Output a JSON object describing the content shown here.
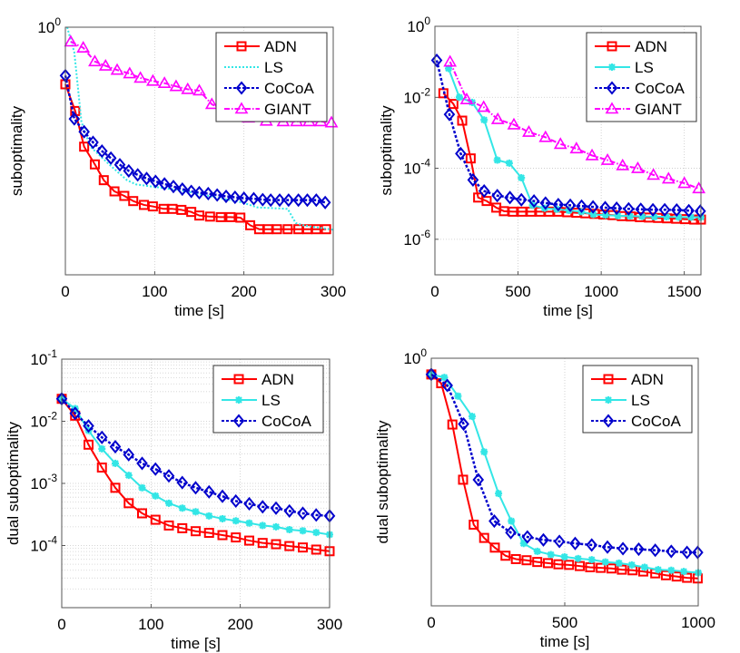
{
  "chart_data": [
    {
      "type": "line",
      "xlabel": "time [s]",
      "ylabel": "suboptimality",
      "yscale": "log",
      "xlim": [
        0,
        300
      ],
      "ylim": [
        0.2,
        1
      ],
      "xticks": [
        0,
        100,
        200,
        300
      ],
      "xtick_labels": [
        "0",
        "100",
        "200",
        "300"
      ],
      "yticks": [
        1
      ],
      "ytick_labels": [
        "10^0"
      ],
      "grid": "major dotted",
      "legend": "top-right",
      "series": [
        {
          "name": "ADN",
          "color": "#ff0000",
          "line": "solid",
          "marker": "square",
          "x": [
            0,
            11,
            21,
            33,
            43,
            55,
            66,
            76,
            88,
            98,
            110,
            120,
            130,
            141,
            150,
            162,
            174,
            185,
            196,
            207,
            217,
            227,
            237,
            249,
            261,
            271,
            281,
            292
          ],
          "y": [
            0.69,
            0.58,
            0.46,
            0.41,
            0.37,
            0.344,
            0.334,
            0.323,
            0.315,
            0.312,
            0.307,
            0.307,
            0.305,
            0.301,
            0.294,
            0.292,
            0.291,
            0.291,
            0.29,
            0.276,
            0.269,
            0.269,
            0.269,
            0.269,
            0.269,
            0.269,
            0.269,
            0.269
          ]
        },
        {
          "name": "LS",
          "color": "#33e6e6",
          "line": "dotted",
          "marker": "none",
          "x": [
            2,
            10,
            18,
            28,
            49,
            69,
            79,
            130,
            198,
            215,
            249,
            258,
            266,
            300
          ],
          "y": [
            1,
            0.85,
            0.54,
            0.46,
            0.41,
            0.37,
            0.36,
            0.346,
            0.32,
            0.31,
            0.307,
            0.28,
            0.276,
            0.268
          ]
        },
        {
          "name": "CoCoA",
          "color": "#0000cc",
          "line": "dashed",
          "marker": "diamond",
          "x": [
            0,
            10,
            21,
            31,
            41,
            51,
            61,
            71,
            81,
            91,
            101,
            111,
            121,
            131,
            141,
            150,
            160,
            170,
            180,
            190,
            200,
            211,
            221,
            230,
            240,
            250,
            261,
            271,
            281,
            291
          ],
          "y": [
            0.73,
            0.551,
            0.507,
            0.473,
            0.447,
            0.427,
            0.409,
            0.393,
            0.383,
            0.374,
            0.367,
            0.361,
            0.355,
            0.349,
            0.344,
            0.341,
            0.339,
            0.336,
            0.333,
            0.331,
            0.329,
            0.328,
            0.326,
            0.325,
            0.325,
            0.325,
            0.325,
            0.325,
            0.325,
            0.32
          ]
        },
        {
          "name": "GIANT",
          "color": "#ff00ff",
          "line": "dashdot",
          "marker": "triangle",
          "x": [
            6,
            20,
            33,
            45,
            58,
            72,
            84,
            98,
            111,
            124,
            137,
            150,
            164,
            178,
            191,
            205,
            225,
            244,
            259,
            273,
            286,
            298
          ],
          "y": [
            0.91,
            0.875,
            0.8,
            0.778,
            0.757,
            0.74,
            0.719,
            0.705,
            0.695,
            0.681,
            0.668,
            0.662,
            0.606,
            0.582,
            0.565,
            0.555,
            0.544,
            0.542,
            0.542,
            0.542,
            0.542,
            0.538
          ]
        }
      ]
    },
    {
      "type": "line",
      "xlabel": "time [s]",
      "ylabel": "suboptimality",
      "yscale": "log",
      "xlim": [
        0,
        1600
      ],
      "ylim": [
        1e-07,
        1
      ],
      "xticks": [
        0,
        500,
        1000,
        1500
      ],
      "xtick_labels": [
        "0",
        "500",
        "1000",
        "1500"
      ],
      "yticks": [
        1,
        0.01,
        0.0001,
        1e-06
      ],
      "ytick_labels": [
        "10^0",
        "10^-2",
        "10^-4",
        "10^-6"
      ],
      "grid": "major dotted",
      "legend": "top-right",
      "series": [
        {
          "name": "ADN",
          "color": "#ff0000",
          "line": "solid",
          "marker": "square",
          "x": [
            51,
            111,
            164,
            215,
            260,
            311,
            369,
            415,
            469,
            524,
            578,
            633,
            687,
            742,
            796,
            851,
            905,
            960,
            1014,
            1069,
            1124,
            1178,
            1233,
            1287,
            1342,
            1396,
            1451,
            1505,
            1560,
            1600
          ],
          "y": [
            0.013,
            0.0065,
            0.0022,
            0.00019,
            1.5e-05,
            1.2e-05,
            7.8e-06,
            6.2e-06,
            6e-06,
            6e-06,
            6e-06,
            6e-06,
            6e-06,
            6e-06,
            5.8e-06,
            5.6e-06,
            5.4e-06,
            5.2e-06,
            5e-06,
            4.8e-06,
            4.5e-06,
            4.4e-06,
            4.2e-06,
            4.1e-06,
            4e-06,
            3.9e-06,
            3.8e-06,
            3.7e-06,
            3.6e-06,
            3.6e-06
          ]
        },
        {
          "name": "LS",
          "color": "#33e6e6",
          "line": "solid",
          "marker": "star",
          "x": [
            82,
            147,
            224,
            296,
            375,
            447,
            520,
            587,
            660,
            733,
            806,
            880,
            953,
            1026,
            1100,
            1173,
            1246,
            1320,
            1393,
            1466,
            1540,
            1600
          ],
          "y": [
            0.065,
            0.01,
            0.0072,
            0.0023,
            0.00017,
            0.00014,
            5.4e-05,
            9.1e-06,
            7.5e-06,
            7e-06,
            6.5e-06,
            6e-06,
            5e-06,
            4.8e-06,
            4.6e-06,
            4.5e-06,
            4.4e-06,
            4.3e-06,
            4.3e-06,
            4.2e-06,
            4.2e-06,
            4.2e-06
          ]
        },
        {
          "name": "CoCoA",
          "color": "#0000cc",
          "line": "dashed",
          "marker": "diamond",
          "x": [
            11,
            87,
            155,
            229,
            296,
            375,
            451,
            520,
            596,
            665,
            742,
            814,
            882,
            951,
            1024,
            1093,
            1165,
            1238,
            1311,
            1382,
            1454,
            1527,
            1596
          ],
          "y": [
            0.11,
            0.0033,
            0.00026,
            4.7e-05,
            2.3e-05,
            1.7e-05,
            1.5e-05,
            1.3e-05,
            1.2e-05,
            1.05e-05,
            9.5e-06,
            9.1e-06,
            8.6e-06,
            8.2e-06,
            7.8e-06,
            7.5e-06,
            7.2e-06,
            7e-06,
            6.8e-06,
            6.8e-06,
            6.7e-06,
            6.4e-06,
            6.2e-06
          ]
        },
        {
          "name": "GIANT",
          "color": "#ff00ff",
          "line": "dashdot",
          "marker": "triangle",
          "x": [
            91,
            191,
            293,
            378,
            475,
            565,
            665,
            755,
            851,
            945,
            1038,
            1129,
            1220,
            1314,
            1405,
            1500,
            1587
          ],
          "y": [
            0.1,
            0.0087,
            0.0053,
            0.0024,
            0.0017,
            0.00105,
            0.00075,
            0.00048,
            0.00036,
            0.00023,
            0.00017,
            0.00012,
            0.0001,
            6.5e-05,
            5.1e-05,
            3.8e-05,
            2.7e-05
          ]
        }
      ]
    },
    {
      "type": "line",
      "xlabel": "time [s]",
      "ylabel": "dual suboptimality",
      "yscale": "log",
      "xlim": [
        0,
        300
      ],
      "ylim": [
        1e-05,
        0.1
      ],
      "xticks": [
        0,
        100,
        200,
        300
      ],
      "xtick_labels": [
        "0",
        "100",
        "200",
        "300"
      ],
      "yticks": [
        0.1,
        0.01,
        0.001,
        0.0001
      ],
      "ytick_labels": [
        "10^-1",
        "10^-2",
        "10^-3",
        "10^-4"
      ],
      "grid": "major and minor dotted",
      "legend": "top-right",
      "series": [
        {
          "name": "ADN",
          "color": "#ff0000",
          "line": "solid",
          "marker": "square",
          "x": [
            0,
            15,
            30,
            45,
            60,
            75,
            90,
            105,
            120,
            135,
            150,
            165,
            180,
            195,
            210,
            225,
            240,
            255,
            270,
            285,
            300
          ],
          "y": [
            0.023,
            0.0123,
            0.0042,
            0.0018,
            0.00085,
            0.00048,
            0.00033,
            0.00026,
            0.00021,
            0.00019,
            0.00017,
            0.00016,
            0.000147,
            0.000135,
            0.00012,
            0.00011,
            0.000105,
            9.8e-05,
            9.3e-05,
            8.6e-05,
            8.1e-05
          ]
        },
        {
          "name": "LS",
          "color": "#33e6e6",
          "line": "solid",
          "marker": "star",
          "x": [
            0,
            15,
            30,
            45,
            60,
            75,
            90,
            105,
            120,
            135,
            150,
            165,
            180,
            195,
            210,
            225,
            240,
            255,
            270,
            285,
            300
          ],
          "y": [
            0.023,
            0.016,
            0.0071,
            0.0036,
            0.0021,
            0.00135,
            0.00085,
            0.00063,
            0.00048,
            0.0004,
            0.00035,
            0.0003,
            0.00027,
            0.00025,
            0.00023,
            0.00021,
            0.0002,
            0.00018,
            0.000173,
            0.000162,
            0.00015
          ]
        },
        {
          "name": "CoCoA",
          "color": "#0000cc",
          "line": "dashed",
          "marker": "diamond",
          "x": [
            0,
            15,
            30,
            45,
            60,
            75,
            90,
            105,
            120,
            135,
            150,
            165,
            180,
            195,
            210,
            225,
            240,
            255,
            270,
            285,
            300
          ],
          "y": [
            0.023,
            0.0134,
            0.0084,
            0.0055,
            0.0039,
            0.0029,
            0.0021,
            0.0017,
            0.00132,
            0.00103,
            0.00085,
            0.00073,
            0.00062,
            0.00052,
            0.00047,
            0.00042,
            0.0004,
            0.00036,
            0.00033,
            0.00031,
            0.0003
          ]
        }
      ]
    },
    {
      "type": "line",
      "xlabel": "time [s]",
      "ylabel": "dual suboptimality",
      "yscale": "log",
      "xlim": [
        0,
        1000
      ],
      "ylim": [
        0.2,
        1
      ],
      "xticks": [
        0,
        500,
        1000
      ],
      "xtick_labels": [
        "0",
        "500",
        "1000"
      ],
      "yticks": [
        1
      ],
      "ytick_labels": [
        "10^0"
      ],
      "grid": "major dotted",
      "legend": "top-right",
      "series": [
        {
          "name": "ADN",
          "color": "#ff0000",
          "line": "solid",
          "marker": "square",
          "x": [
            0,
            37,
            79,
            119,
            159,
            198,
            238,
            278,
            317,
            357,
            397,
            437,
            476,
            516,
            556,
            595,
            635,
            675,
            714,
            754,
            794,
            839,
            879,
            919,
            958,
            998
          ],
          "y": [
            0.9,
            0.85,
            0.65,
            0.454,
            0.339,
            0.311,
            0.292,
            0.277,
            0.271,
            0.269,
            0.266,
            0.264,
            0.262,
            0.261,
            0.259,
            0.257,
            0.256,
            0.255,
            0.253,
            0.252,
            0.25,
            0.247,
            0.244,
            0.242,
            0.24,
            0.239
          ]
        },
        {
          "name": "LS",
          "color": "#33e6e6",
          "line": "solid",
          "marker": "star",
          "x": [
            0,
            49,
            100,
            153,
            198,
            252,
            300,
            346,
            397,
            448,
            499,
            550,
            601,
            652,
            703,
            751,
            799,
            850,
            899,
            946,
            1000
          ],
          "y": [
            0.9,
            0.883,
            0.782,
            0.685,
            0.544,
            0.415,
            0.347,
            0.3,
            0.285,
            0.279,
            0.275,
            0.272,
            0.27,
            0.266,
            0.264,
            0.261,
            0.257,
            0.253,
            0.252,
            0.25,
            0.248
          ]
        },
        {
          "name": "CoCoA",
          "color": "#0000cc",
          "line": "dashed",
          "marker": "diamond",
          "x": [
            0,
            60,
            121,
            176,
            236,
            298,
            360,
            420,
            480,
            539,
            601,
            660,
            718,
            777,
            839,
            899,
            958,
            998
          ],
          "y": [
            0.9,
            0.838,
            0.652,
            0.454,
            0.347,
            0.322,
            0.313,
            0.307,
            0.304,
            0.3,
            0.297,
            0.293,
            0.29,
            0.289,
            0.287,
            0.285,
            0.283,
            0.283
          ]
        }
      ]
    }
  ]
}
